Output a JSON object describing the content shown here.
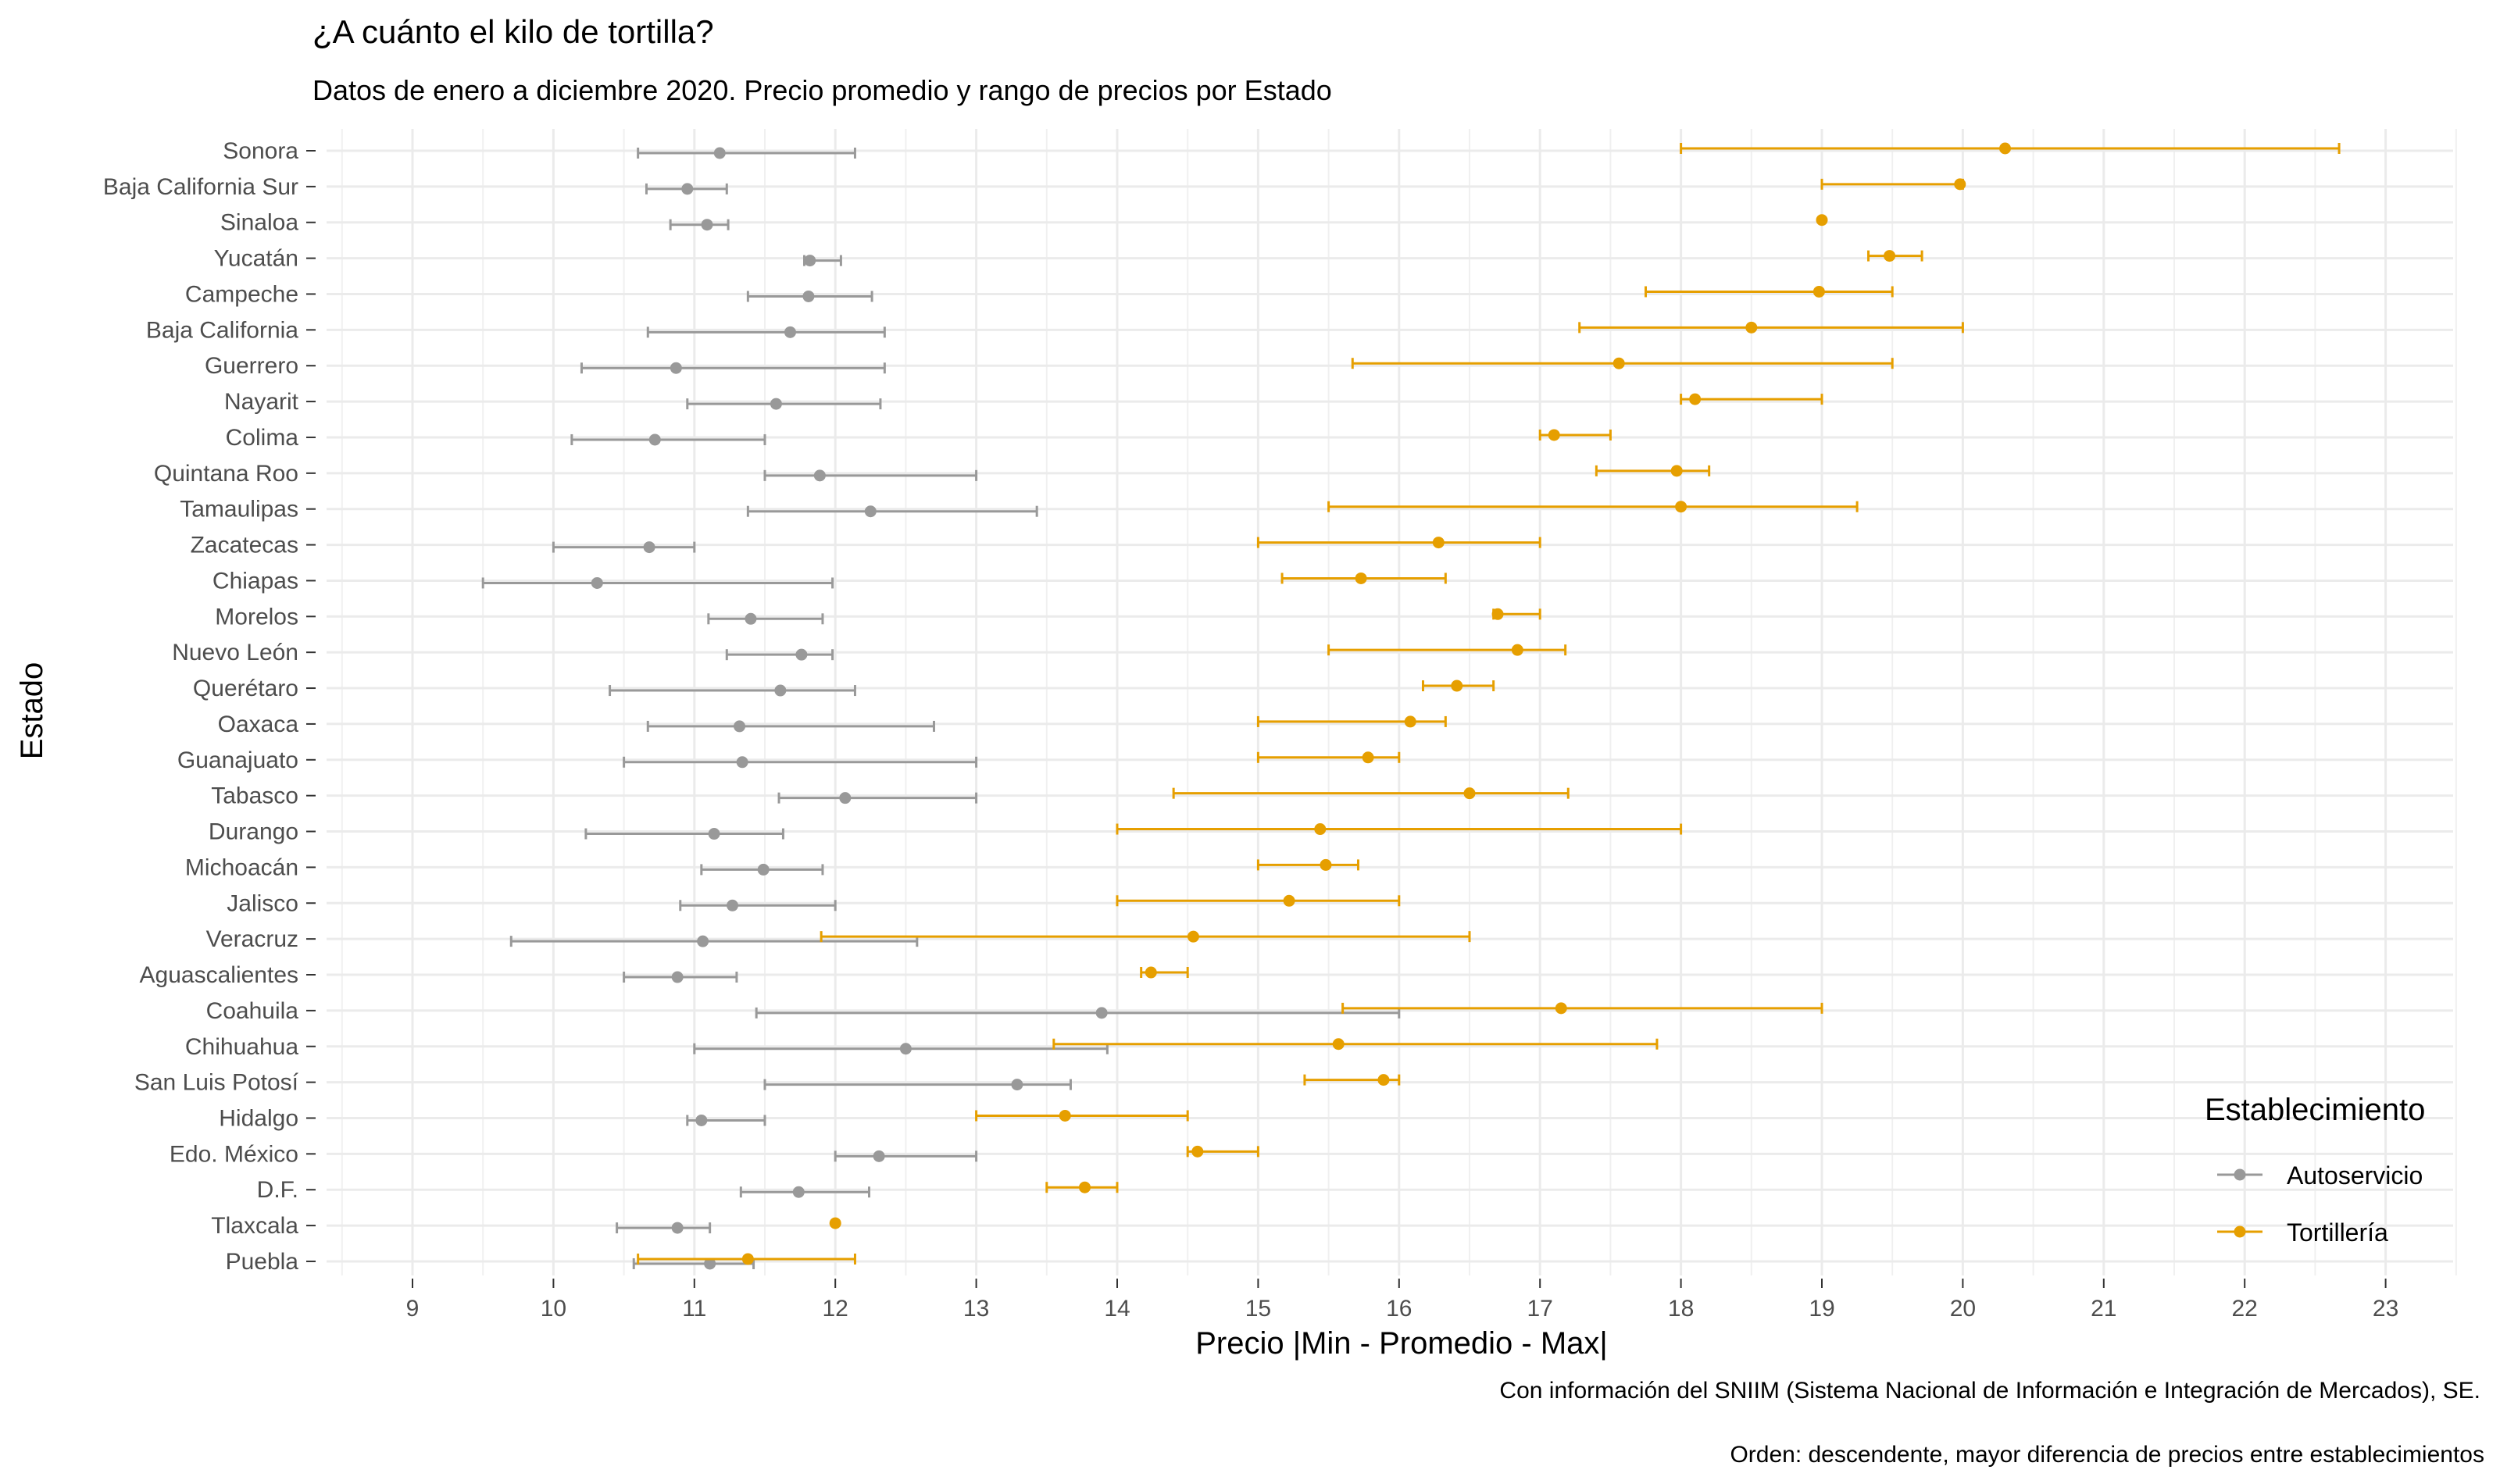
{
  "chart_data": {
    "type": "errorbar",
    "title": "¿A cuánto el kilo de tortilla?",
    "subtitle": "Datos de enero a diciembre 2020. Precio promedio y rango de precios por Estado",
    "xlabel": "Precio |Min - Promedio - Max|",
    "ylabel": "Estado",
    "caption": [
      "Con información del SNIIM (Sistema Nacional de Información e Integración de Mercados), SE.",
      "Orden: descendente, mayor diferencia de precios entre establecimientos"
    ],
    "xlim": [
      8.5,
      23.5
    ],
    "xticks": [
      9,
      10,
      11,
      12,
      13,
      14,
      15,
      16,
      17,
      18,
      19,
      20,
      21,
      22,
      23
    ],
    "xtick_labels": [
      "9",
      "10",
      "11",
      "12",
      "13",
      "14",
      "15",
      "16",
      "17",
      "18",
      "19",
      "20",
      "21",
      "22",
      "23"
    ],
    "grid": true,
    "legend": {
      "title": "Establecimiento",
      "position": "right-bottom"
    },
    "categories": [
      "Sonora",
      "Baja California Sur",
      "Sinaloa",
      "Yucatán",
      "Campeche",
      "Baja California",
      "Guerrero",
      "Nayarit",
      "Colima",
      "Quintana Roo",
      "Tamaulipas",
      "Zacatecas",
      "Chiapas",
      "Morelos",
      "Nuevo León",
      "Querétaro",
      "Oaxaca",
      "Guanajuato",
      "Tabasco",
      "Durango",
      "Michoacán",
      "Jalisco",
      "Veracruz",
      "Aguascalientes",
      "Coahuila",
      "Chihuahua",
      "San Luis Potosí",
      "Hidalgo",
      "Edo. México",
      "D.F.",
      "Tlaxcala",
      "Puebla"
    ],
    "series": [
      {
        "name": "Autoservicio",
        "color": "#999999",
        "min": [
          10.6,
          10.66,
          10.83,
          11.78,
          11.38,
          10.67,
          10.2,
          10.95,
          10.13,
          11.5,
          11.38,
          10.0,
          9.5,
          11.1,
          11.23,
          10.4,
          10.67,
          10.5,
          11.6,
          10.23,
          11.05,
          10.9,
          9.7,
          10.5,
          11.44,
          11.0,
          11.5,
          10.95,
          12.0,
          11.33,
          10.45,
          10.57
        ],
        "mean": [
          11.18,
          10.95,
          11.09,
          11.82,
          11.81,
          11.68,
          10.87,
          11.58,
          10.72,
          11.89,
          12.25,
          10.68,
          10.31,
          11.4,
          11.76,
          11.61,
          11.32,
          11.34,
          12.07,
          11.14,
          11.49,
          11.27,
          11.06,
          10.88,
          13.89,
          12.5,
          13.29,
          11.05,
          12.31,
          11.74,
          10.88,
          11.11
        ],
        "max": [
          12.14,
          11.23,
          11.24,
          12.04,
          12.26,
          12.35,
          12.35,
          12.32,
          11.5,
          13.0,
          13.43,
          11.0,
          11.98,
          11.91,
          11.98,
          12.14,
          12.7,
          13.0,
          13.0,
          11.63,
          11.91,
          12.0,
          12.58,
          11.3,
          16.0,
          13.93,
          13.67,
          11.5,
          13.0,
          12.24,
          11.11,
          11.42
        ]
      },
      {
        "name": "Tortillería",
        "color": "#E69F00",
        "min": [
          18.0,
          19.0,
          19.0,
          19.33,
          17.75,
          17.28,
          15.67,
          18.0,
          17.0,
          17.4,
          15.5,
          15.0,
          15.17,
          16.67,
          15.5,
          16.17,
          15.0,
          15.0,
          14.4,
          14.0,
          15.0,
          14.0,
          11.9,
          14.17,
          15.6,
          13.55,
          15.33,
          13.0,
          14.5,
          13.5,
          12.0,
          10.6
        ],
        "mean": [
          20.3,
          19.98,
          19.0,
          19.48,
          18.98,
          18.5,
          17.56,
          18.1,
          17.1,
          17.97,
          18.0,
          16.28,
          15.73,
          16.7,
          16.84,
          16.41,
          16.08,
          15.78,
          16.5,
          15.44,
          15.48,
          15.22,
          14.54,
          14.24,
          17.15,
          15.57,
          15.89,
          13.63,
          14.57,
          13.77,
          12.0,
          11.38
        ],
        "max": [
          22.67,
          20.0,
          19.0,
          19.71,
          19.5,
          20.0,
          19.5,
          19.0,
          17.5,
          18.2,
          19.25,
          17.0,
          16.33,
          17.0,
          17.18,
          16.67,
          16.33,
          16.0,
          17.2,
          18.0,
          15.71,
          16.0,
          16.5,
          14.5,
          19.0,
          17.83,
          16.0,
          14.5,
          15.0,
          14.0,
          12.0,
          12.14
        ]
      }
    ]
  }
}
